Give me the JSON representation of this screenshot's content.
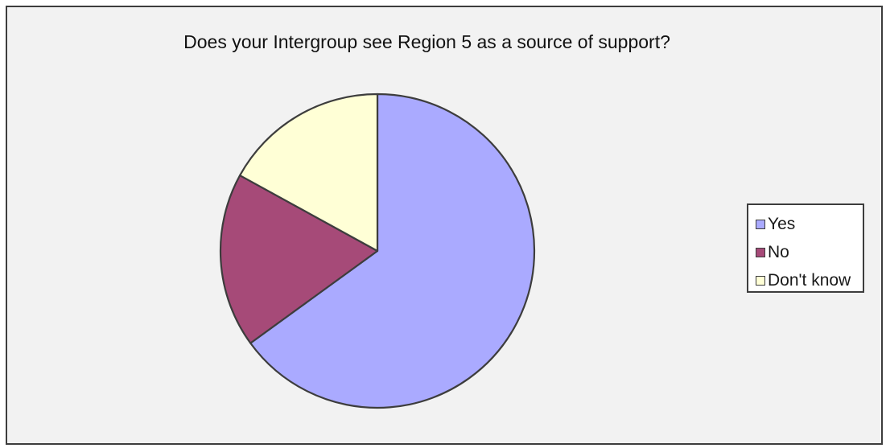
{
  "chart_data": {
    "type": "pie",
    "title": "Does your Intergroup see Region 5 as a source of support?",
    "categories": [
      "Yes",
      "No",
      "Don't know"
    ],
    "values": [
      65,
      18,
      17
    ],
    "colors": [
      "#aaaaff",
      "#a64a78",
      "#ffffd6"
    ],
    "legend_position": "right"
  }
}
